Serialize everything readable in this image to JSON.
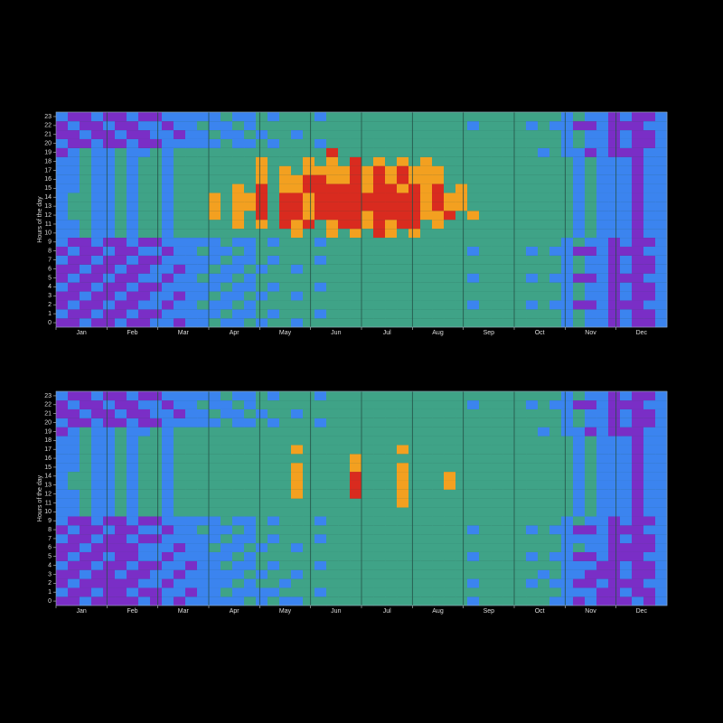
{
  "chart_data": [
    {
      "type": "heatmap",
      "y_label": "Hours of the day",
      "categories": [
        "Jan",
        "Feb",
        "Mar",
        "Apr",
        "May",
        "Jun",
        "Jul",
        "Aug",
        "Sep",
        "Oct",
        "Nov",
        "Dec"
      ],
      "yticks": [
        0,
        1,
        2,
        3,
        4,
        5,
        6,
        7,
        8,
        9,
        10,
        11,
        12,
        13,
        14,
        15,
        16,
        17,
        18,
        19,
        20,
        21,
        22,
        23
      ],
      "colors": {
        "P": "#7a2ec6",
        "B": "#3b84ef",
        "G": "#3fa387",
        "O": "#f3a020",
        "R": "#d92b1f"
      },
      "rows": [
        "PPBPPBPPBBPBBGBBGBGGBGGGGGGGGGGGGGGGGGGGGGGBGBBPBPPB",
        "BPPBPPBPPBBBBBGBBGBGGGBGGGGGGGGGGGGGGGGGGGGBGBBPBPPB",
        "PBPPBPPBBPBBGBBGBGGGGGGGGGGGGGGGGGGBGGGGBGBBPPBPPPBB",
        "PPBPPBPPBBPBBGBBGBGGBGGGGGGGGGGGGGGGGGGGGGGBGBBPBPPB",
        "BPPBPPBPPBBBBBGBBGBGGGBGGGGGGGGGGGGGGGGGGGGBGBBPBPPB",
        "PBPPBPPBBPBBGBBGBGGGGGGGGGGGGGGGGGGBGGGGBGBBPPBPPPBB",
        "PPBPPBPPBBPBBGBBGBGGBGGGGGGGGGGGGGGGGGGGGGGBGBBPBPPB",
        "BPPBPPBPPBBBBBGBBGBGGGBGGGGGGGGGGGGGGGGGGGGBGBBPBPPB",
        "PBPPBPPBBPBBGBBGBGGGGGGGGGGGGGGGGGGBGGGGBGBBPPBPPPBB",
        "BPPBPPBPPBBBBBGBBGBGGGBGGGGGGGGGGGGGGGGGGGGBGBBPBPPB",
        "BBGBBGBGGBGGGGGGGGGGOGGOGOGROGOGGGGGGGGGGGGGBGBBBPBB",
        "BBGBBGBGGBGGGGGOGOGRORGORRORORRGOGGGGGGGGGGGBGBBBPBB",
        "BGGBBGBGGBGGGOGOGRGRRORRRRORRRROORGOGGGGGGGGBGBBBPBB",
        "BGGBBGBGGBGGGOGOORGRRORRRRRRRRROROOGGGGGGGGGBGBBBPBB",
        "BGGBBGBGGBGGGOGOORGRRORRRRRRRRROROOGGGGGGGGGBGBBBPBB",
        "BBGBBGBGGBGGGGGOGRGOORRRRRORRORORGOGGGGGGGGGBGBBBPBB",
        "BBGBBGBGGBGGGGGGGOGOORROOROROROOOGGGGGGGGGGGBGBBBPBB",
        "BBGBBGBGGBGGGGGGGOGOGOOOOROROROOOGGGGGGGGGGGBGBBBPBB",
        "BBGBBGBGGBGGGGGGGOGGGOGOGRGOGOGOGGGGGGGGGGGGBGBBBPBB",
        "PBGBBGBBGBGGGGGGGGGGGGGRGGGGGGGGGGGGGGGGGBGBBPBPPPBB",
        "BPPBPPBPPBBBBBGBBGBGGGBGGGGGGGGGGGGGGGGGGGGBGBBPBPPB",
        "PPBPPBPPBBPBBGBBGBGGBGGGGGGGGGGGGGGGGGGGGGGBGBBPBPPB",
        "PBPPBPPBBPBBGBBGBGGGGGGGGGGGGGGGGGGBGGGGBGBBPPBPPPBB",
        "BPPBPPBPPBBBBBGBBGBGGGBGGGGGGGGGGGGGGGGGGGGBGBBPBPPB"
      ]
    },
    {
      "type": "heatmap",
      "y_label": "Hours of the day",
      "categories": [
        "Jan",
        "Feb",
        "Mar",
        "Apr",
        "May",
        "Jun",
        "Jul",
        "Aug",
        "Sep",
        "Oct",
        "Nov",
        "Dec"
      ],
      "yticks": [
        0,
        1,
        2,
        3,
        4,
        5,
        6,
        7,
        8,
        9,
        10,
        11,
        12,
        13,
        14,
        15,
        16,
        17,
        18,
        19,
        20,
        21,
        22,
        23
      ],
      "colors": {
        "P": "#7a2ec6",
        "B": "#3b84ef",
        "G": "#3fa387",
        "O": "#f3a020",
        "R": "#d92b1f"
      },
      "rows": [
        "PPBPPPPBPBPBBBBBGBGBBGGGGGGGGGGGGGGBGGGGGGBBPBPPPBPB",
        "BPPBPPBPPBBPBBGBBBBGGGBGGGGGGGGGGGGGGGGGGGGBBBPPBPPB",
        "PBPPPPPBBPBBBBBGBGGBGGGGGGGGGGGGGGGBGGGGBGBBPPBPPPBB",
        "PPBPPBPPBBPBBBBBGBGGBGGGGGGGGGGGGGGGGGGGGBGBBPPPBPPB",
        "BPPBPPBPPBBPBBGBBGBGGGBGGGGGGGGGGGGGGGGGGGGBBBPPBPPB",
        "PBPPBPPBBPBBBBBGBGGGGGGGGGGGGGGGGGGBGGGGBGBBPPBPPPBB",
        "PPBPPPPBBBPBBGBBGBGGBGGGGGGGGGGGGGGGGGGGGGGBGBBPPPPB",
        "BPPBPPBPPBBBBBGBBGBGGGBGGGGGGGGGGGGGGGGGGGGBBBBPBPPB",
        "PBPPBPPBBPBBGBBGBGGGGGGGGGGGGGGGGGGBGGGGBGBBPPBPPPBB",
        "BPPBPPBPPBBBBBGBBGBGGGBGGGGGGGGGGGGGGGGGGGGBGBBPBPPB",
        "BBGBBGBGGBGGGGGGGGGGGGGGGGGGGGGGGGGGGGGGGGGGBGBBBPBB",
        "BBGBBGBGGBGGGGGGGGGGGGGGGGGGGOGGGGGGGGGGGGGGBGBBBPBB",
        "BBGBBGBGGBGGGGGGGGGGOGGGGRGGGOGGGGGGGGGGGGGGBGBBBPBB",
        "BGGBBGBGGBGGGGGGGGGGOGGGGRGGGOGGGOGGGGGGGGGGBGBBBPBB",
        "BGGBBGBGGBGGGGGGGGGGOGGGGRGGGOGGGOGGGGGGGGGGBGBBBPBB",
        "BBGBBGBGGBGGGGGGGGGGOGGGGOGGGOGGGGGGGGGGGGGGBGBBBPBB",
        "BBGBBGBGGBGGGGGGGGGGGGGGGOGGGGGGGGGGGGGGGGGGBGBBBPBB",
        "BBGBBGBGGBGGGGGGGGGGOGGGGGGGGOGGGGGGGGGGGGGGBGBBBPBB",
        "BBGBBGBGGBGGGGGGGGGGGGGGGGGGGGGGGGGGGGGGGGGGBGBBBPBB",
        "PBGBBGBBGBGGGGGGGGGGGGGGGGGGGGGGGGGGGGGGGBGBBPBPPPBB",
        "BPPBPPBPPBBBBBGBBGBGGGBGGGGGGGGGGGGGGGGGGGGBGBBPBPPB",
        "PPBPPBPPBBPBBGBBGBGGBGGGGGGGGGGGGGGGGGGGGGGBGBBPBPPB",
        "PBPPBPPBBPBBGBBGBGGGGGGGGGGGGGGGGGGBGGGGBGBBPPBPPPBB",
        "BPPBPPBPPBBBBBGBBGBGGGBGGGGGGGGGGGGGGGGGGGGBGBBPBPPB"
      ]
    }
  ]
}
